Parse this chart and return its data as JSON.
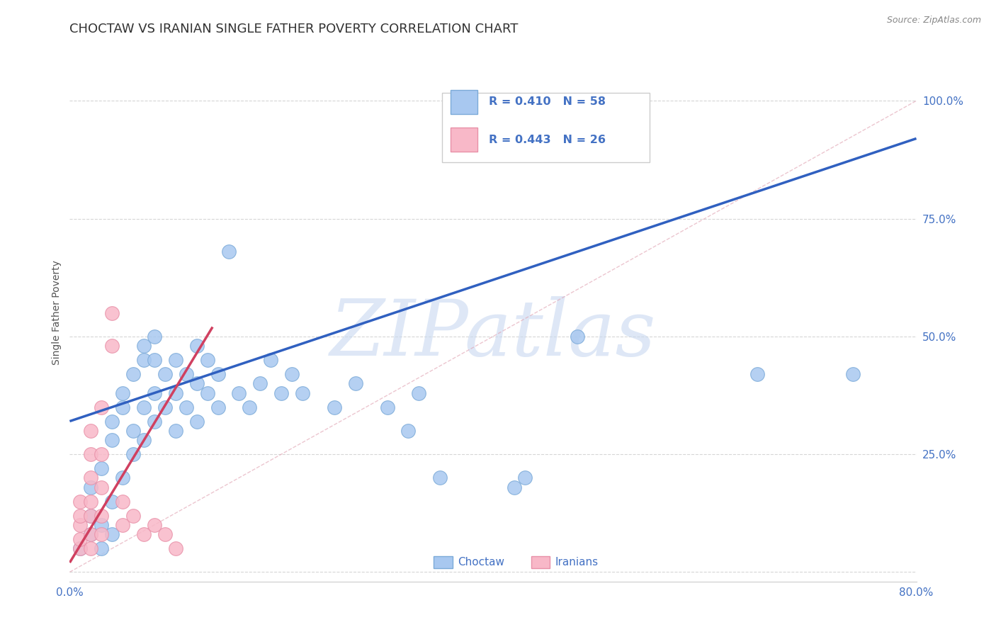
{
  "title": "CHOCTAW VS IRANIAN SINGLE FATHER POVERTY CORRELATION CHART",
  "source": "Source: ZipAtlas.com",
  "ylabel": "Single Father Poverty",
  "xlim": [
    0.0,
    0.8
  ],
  "ylim": [
    -0.02,
    1.12
  ],
  "yticks": [
    0.0,
    0.25,
    0.5,
    0.75,
    1.0
  ],
  "ytick_labels": [
    "",
    "25.0%",
    "50.0%",
    "75.0%",
    "100.0%"
  ],
  "xticks": [
    0.0,
    0.16,
    0.32,
    0.48,
    0.64,
    0.8
  ],
  "xtick_labels": [
    "0.0%",
    "",
    "",
    "",
    "",
    "80.0%"
  ],
  "choctaw_points": [
    [
      0.01,
      0.05
    ],
    [
      0.02,
      0.08
    ],
    [
      0.02,
      0.12
    ],
    [
      0.02,
      0.18
    ],
    [
      0.03,
      0.05
    ],
    [
      0.03,
      0.1
    ],
    [
      0.03,
      0.22
    ],
    [
      0.04,
      0.08
    ],
    [
      0.04,
      0.15
    ],
    [
      0.04,
      0.28
    ],
    [
      0.04,
      0.32
    ],
    [
      0.05,
      0.2
    ],
    [
      0.05,
      0.35
    ],
    [
      0.05,
      0.38
    ],
    [
      0.06,
      0.25
    ],
    [
      0.06,
      0.3
    ],
    [
      0.06,
      0.42
    ],
    [
      0.07,
      0.28
    ],
    [
      0.07,
      0.35
    ],
    [
      0.07,
      0.45
    ],
    [
      0.07,
      0.48
    ],
    [
      0.08,
      0.32
    ],
    [
      0.08,
      0.38
    ],
    [
      0.08,
      0.45
    ],
    [
      0.08,
      0.5
    ],
    [
      0.09,
      0.35
    ],
    [
      0.09,
      0.42
    ],
    [
      0.1,
      0.3
    ],
    [
      0.1,
      0.38
    ],
    [
      0.1,
      0.45
    ],
    [
      0.11,
      0.35
    ],
    [
      0.11,
      0.42
    ],
    [
      0.12,
      0.32
    ],
    [
      0.12,
      0.4
    ],
    [
      0.12,
      0.48
    ],
    [
      0.13,
      0.38
    ],
    [
      0.13,
      0.45
    ],
    [
      0.14,
      0.35
    ],
    [
      0.14,
      0.42
    ],
    [
      0.15,
      0.68
    ],
    [
      0.16,
      0.38
    ],
    [
      0.17,
      0.35
    ],
    [
      0.18,
      0.4
    ],
    [
      0.19,
      0.45
    ],
    [
      0.2,
      0.38
    ],
    [
      0.21,
      0.42
    ],
    [
      0.22,
      0.38
    ],
    [
      0.25,
      0.35
    ],
    [
      0.27,
      0.4
    ],
    [
      0.3,
      0.35
    ],
    [
      0.32,
      0.3
    ],
    [
      0.33,
      0.38
    ],
    [
      0.35,
      0.2
    ],
    [
      0.42,
      0.18
    ],
    [
      0.43,
      0.2
    ],
    [
      0.48,
      0.5
    ],
    [
      0.65,
      0.42
    ],
    [
      0.74,
      0.42
    ]
  ],
  "iranian_points": [
    [
      0.01,
      0.05
    ],
    [
      0.01,
      0.07
    ],
    [
      0.01,
      0.1
    ],
    [
      0.01,
      0.12
    ],
    [
      0.01,
      0.15
    ],
    [
      0.02,
      0.05
    ],
    [
      0.02,
      0.08
    ],
    [
      0.02,
      0.12
    ],
    [
      0.02,
      0.15
    ],
    [
      0.02,
      0.2
    ],
    [
      0.02,
      0.25
    ],
    [
      0.02,
      0.3
    ],
    [
      0.03,
      0.08
    ],
    [
      0.03,
      0.12
    ],
    [
      0.03,
      0.18
    ],
    [
      0.03,
      0.25
    ],
    [
      0.03,
      0.35
    ],
    [
      0.04,
      0.48
    ],
    [
      0.04,
      0.55
    ],
    [
      0.05,
      0.1
    ],
    [
      0.05,
      0.15
    ],
    [
      0.06,
      0.12
    ],
    [
      0.07,
      0.08
    ],
    [
      0.08,
      0.1
    ],
    [
      0.09,
      0.08
    ],
    [
      0.1,
      0.05
    ]
  ],
  "choctaw_color": "#a8c8f0",
  "choctaw_edge_color": "#7baad8",
  "iranian_color": "#f8b8c8",
  "iranian_edge_color": "#e890a8",
  "choctaw_line_color": "#3060c0",
  "iranian_line_color": "#d04060",
  "choctaw_line_x": [
    0.0,
    0.8
  ],
  "choctaw_line_y": [
    0.32,
    0.92
  ],
  "iranian_line_x": [
    0.0,
    0.135
  ],
  "iranian_line_y": [
    0.02,
    0.52
  ],
  "diag_line_x": [
    0.0,
    0.8
  ],
  "diag_line_y": [
    0.0,
    1.0
  ],
  "choctaw_r": 0.41,
  "choctaw_n": 58,
  "iranian_r": 0.443,
  "iranian_n": 26,
  "watermark_text": "ZIPatlas",
  "watermark_color": "#c8d8f0",
  "title_fontsize": 13,
  "tick_color": "#4472c4",
  "grid_color": "#cccccc",
  "background_color": "#ffffff",
  "legend_facecolor": "#ffffff",
  "legend_edgecolor": "#cccccc",
  "source_color": "#888888"
}
